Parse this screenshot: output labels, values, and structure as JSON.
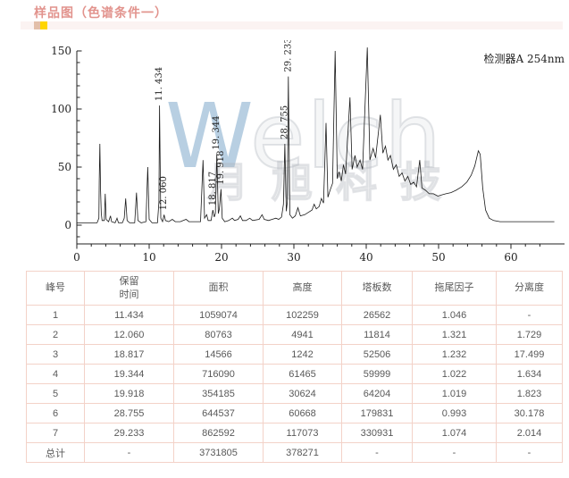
{
  "page_title": "样品图（色谱条件一）",
  "accent": {
    "title_color": "#e2938d",
    "band_color": "#fbf3f2",
    "band_square_pink": "#e3bfa9",
    "band_square_yellow": "#ffd503",
    "table_border": "#f3d2c8",
    "table_text": "#595959",
    "watermark_blue": "rgba(126,168,203,0.55)"
  },
  "chart_data": {
    "type": "line",
    "title": "",
    "xlabel": "",
    "ylabel": "",
    "detector_label": "检测器A 254nm",
    "xlim": [
      0,
      66
    ],
    "ylim": [
      -16,
      158
    ],
    "x_ticks": [
      0,
      10,
      20,
      30,
      40,
      50,
      60
    ],
    "y_ticks": [
      0,
      50,
      100,
      150
    ],
    "x_minor_step": 2,
    "y_minor_step": 10,
    "grid": false,
    "legend": "none",
    "peak_labels": [
      {
        "t": 11.434,
        "v": 103,
        "label": "11. 434"
      },
      {
        "t": 12.06,
        "v": 9,
        "label": "12. 060"
      },
      {
        "t": 18.817,
        "v": 13,
        "label": "18. 817"
      },
      {
        "t": 19.344,
        "v": 61,
        "label": "19. 344"
      },
      {
        "t": 19.918,
        "v": 31,
        "label": "19. 918"
      },
      {
        "t": 28.755,
        "v": 70,
        "label": "28. 755"
      },
      {
        "t": 29.233,
        "v": 128,
        "label": "29. 233"
      }
    ],
    "series": [
      {
        "name": "检测器A 254nm",
        "points": [
          [
            0,
            2
          ],
          [
            2.8,
            2
          ],
          [
            3.05,
            6
          ],
          [
            3.1,
            38
          ],
          [
            3.18,
            70
          ],
          [
            3.28,
            30
          ],
          [
            3.38,
            10
          ],
          [
            3.5,
            4
          ],
          [
            3.8,
            4
          ],
          [
            3.92,
            27
          ],
          [
            4.05,
            5
          ],
          [
            4.4,
            3
          ],
          [
            4.65,
            8
          ],
          [
            4.8,
            3
          ],
          [
            5.3,
            2
          ],
          [
            5.55,
            6
          ],
          [
            5.75,
            2
          ],
          [
            6.3,
            2
          ],
          [
            6.55,
            6
          ],
          [
            6.75,
            23
          ],
          [
            6.95,
            4
          ],
          [
            7.3,
            2
          ],
          [
            8.0,
            2
          ],
          [
            8.25,
            28
          ],
          [
            8.45,
            4
          ],
          [
            8.9,
            2
          ],
          [
            9.55,
            3
          ],
          [
            9.8,
            50
          ],
          [
            10.0,
            5
          ],
          [
            10.4,
            2
          ],
          [
            11.15,
            2
          ],
          [
            11.35,
            20
          ],
          [
            11.43,
            103
          ],
          [
            11.6,
            6
          ],
          [
            11.85,
            3
          ],
          [
            12.06,
            9
          ],
          [
            12.25,
            4
          ],
          [
            12.7,
            3
          ],
          [
            13.2,
            5
          ],
          [
            13.6,
            3
          ],
          [
            14.3,
            3
          ],
          [
            15.1,
            5
          ],
          [
            15.5,
            3
          ],
          [
            16.3,
            3
          ],
          [
            17.1,
            3
          ],
          [
            17.45,
            56
          ],
          [
            17.65,
            6
          ],
          [
            17.95,
            9
          ],
          [
            18.15,
            4
          ],
          [
            18.55,
            4
          ],
          [
            18.8,
            13
          ],
          [
            19.0,
            7
          ],
          [
            19.15,
            10
          ],
          [
            19.34,
            61
          ],
          [
            19.55,
            10
          ],
          [
            19.7,
            14
          ],
          [
            19.92,
            31
          ],
          [
            20.1,
            6
          ],
          [
            20.45,
            3
          ],
          [
            21.0,
            4
          ],
          [
            21.5,
            6
          ],
          [
            21.8,
            4
          ],
          [
            22.3,
            5
          ],
          [
            22.6,
            8
          ],
          [
            22.9,
            4
          ],
          [
            23.4,
            4
          ],
          [
            23.9,
            6
          ],
          [
            24.3,
            4
          ],
          [
            25.2,
            5
          ],
          [
            25.6,
            9
          ],
          [
            25.9,
            5
          ],
          [
            26.5,
            4
          ],
          [
            27.0,
            5
          ],
          [
            27.5,
            6
          ],
          [
            27.9,
            5
          ],
          [
            28.3,
            7
          ],
          [
            28.55,
            18
          ],
          [
            28.755,
            70
          ],
          [
            28.95,
            12
          ],
          [
            29.1,
            20
          ],
          [
            29.233,
            128
          ],
          [
            29.45,
            9
          ],
          [
            29.8,
            6
          ],
          [
            30.2,
            8
          ],
          [
            30.55,
            15
          ],
          [
            30.9,
            8
          ],
          [
            31.5,
            9
          ],
          [
            32.0,
            11
          ],
          [
            32.5,
            13
          ],
          [
            32.8,
            18
          ],
          [
            33.1,
            14
          ],
          [
            33.5,
            16
          ],
          [
            33.8,
            23
          ],
          [
            34.1,
            19
          ],
          [
            34.45,
            88
          ],
          [
            34.7,
            24
          ],
          [
            35.0,
            30
          ],
          [
            35.35,
            36
          ],
          [
            35.7,
            150
          ],
          [
            36.0,
            40
          ],
          [
            36.25,
            46
          ],
          [
            36.55,
            38
          ],
          [
            36.85,
            52
          ],
          [
            37.15,
            44
          ],
          [
            37.75,
            110
          ],
          [
            38.05,
            48
          ],
          [
            38.45,
            60
          ],
          [
            38.75,
            50
          ],
          [
            39.15,
            56
          ],
          [
            39.5,
            48
          ],
          [
            40.15,
            153
          ],
          [
            40.5,
            56
          ],
          [
            40.95,
            66
          ],
          [
            41.3,
            58
          ],
          [
            41.95,
            95
          ],
          [
            42.3,
            62
          ],
          [
            42.65,
            68
          ],
          [
            43.0,
            56
          ],
          [
            43.35,
            60
          ],
          [
            43.75,
            48
          ],
          [
            44.15,
            52
          ],
          [
            44.55,
            42
          ],
          [
            44.95,
            45
          ],
          [
            45.35,
            38
          ],
          [
            45.75,
            42
          ],
          [
            46.15,
            35
          ],
          [
            46.55,
            37
          ],
          [
            46.95,
            33
          ],
          [
            47.4,
            56
          ],
          [
            47.7,
            32
          ],
          [
            48.2,
            30
          ],
          [
            48.7,
            27
          ],
          [
            49.3,
            27
          ],
          [
            49.9,
            25
          ],
          [
            50.4,
            26
          ],
          [
            51.0,
            27
          ],
          [
            51.7,
            28
          ],
          [
            52.4,
            30
          ],
          [
            53.2,
            33
          ],
          [
            53.9,
            37
          ],
          [
            54.5,
            43
          ],
          [
            55.0,
            51
          ],
          [
            55.5,
            64
          ],
          [
            55.75,
            61
          ],
          [
            56.1,
            32
          ],
          [
            56.5,
            13
          ],
          [
            57.0,
            6
          ],
          [
            57.6,
            4
          ],
          [
            58.5,
            3
          ],
          [
            60.0,
            3
          ],
          [
            62.0,
            3
          ],
          [
            64.0,
            3
          ],
          [
            66.0,
            3
          ]
        ]
      }
    ],
    "watermark": {
      "w": "W",
      "rest": "elch",
      "subtext": "月旭科技"
    }
  },
  "table": {
    "headers": [
      "峰号",
      "保留\n时间",
      "面积",
      "高度",
      "塔板数",
      "拖尾因子",
      "分离度"
    ],
    "rows": [
      [
        "1",
        "11.434",
        "1059074",
        "102259",
        "26562",
        "1.046",
        "-"
      ],
      [
        "2",
        "12.060",
        "80763",
        "4941",
        "11814",
        "1.321",
        "1.729"
      ],
      [
        "3",
        "18.817",
        "14566",
        "1242",
        "52506",
        "1.232",
        "17.499"
      ],
      [
        "4",
        "19.344",
        "716090",
        "61465",
        "59999",
        "1.022",
        "1.634"
      ],
      [
        "5",
        "19.918",
        "354185",
        "30624",
        "64204",
        "1.019",
        "1.823"
      ],
      [
        "6",
        "28.755",
        "644537",
        "60668",
        "179831",
        "0.993",
        "30.178"
      ],
      [
        "7",
        "29.233",
        "862592",
        "117073",
        "330931",
        "1.074",
        "2.014"
      ],
      [
        "总计",
        "-",
        "3731805",
        "378271",
        "-",
        "-",
        "-"
      ]
    ]
  }
}
